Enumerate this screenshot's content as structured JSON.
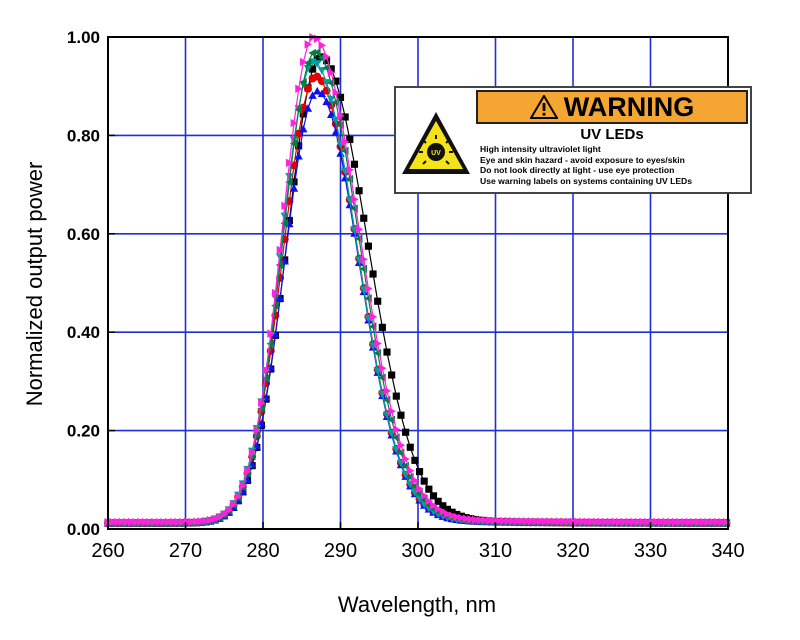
{
  "chart_data": {
    "type": "scatter",
    "xlabel": "Wavelength, nm",
    "ylabel": "Normalized output power",
    "xlim": [
      260,
      340
    ],
    "ylim": [
      0,
      1
    ],
    "xticks": [
      "260",
      "270",
      "280",
      "290",
      "300",
      "310",
      "320",
      "330",
      "340"
    ],
    "yticks": [
      "0.00",
      "0.20",
      "0.40",
      "0.60",
      "0.80",
      "1.00"
    ],
    "grid": true,
    "legend": "none",
    "series": [
      {
        "marker": "square",
        "color": "#000000",
        "peak_x": 287.4,
        "peak_y": 0.96,
        "width_left": 4.3,
        "width_right": 6.0,
        "baseline": 0.012
      },
      {
        "marker": "circle",
        "color": "#e00000",
        "peak_x": 286.8,
        "peak_y": 0.92,
        "width_left": 4.2,
        "width_right": 5.4,
        "baseline": 0.012
      },
      {
        "marker": "triangle-up",
        "color": "#1010ee",
        "peak_x": 287.0,
        "peak_y": 0.89,
        "width_left": 4.2,
        "width_right": 5.3,
        "baseline": 0.012
      },
      {
        "marker": "triangle-down",
        "color": "#00a0a0",
        "peak_x": 286.5,
        "peak_y": 0.95,
        "width_left": 4.1,
        "width_right": 5.5,
        "baseline": 0.012
      },
      {
        "marker": "triangle-left",
        "color": "#008040",
        "peak_x": 286.7,
        "peak_y": 0.97,
        "width_left": 4.1,
        "width_right": 5.6,
        "baseline": 0.012
      },
      {
        "marker": "triangle-right",
        "color": "#ff22dd",
        "peak_x": 286.5,
        "peak_y": 1.0,
        "width_left": 4.0,
        "width_right": 5.8,
        "baseline": 0.014
      }
    ]
  },
  "warning": {
    "header": "WARNING",
    "subtitle": "UV LEDs",
    "lines": [
      "High intensity ultraviolet light",
      "Eye and skin hazard - avoid exposure to eyes/skin",
      "Do not look directly at light - use eye protection",
      "Use warning labels on systems containing UV LEDs"
    ],
    "sign_text": "UV",
    "colors": {
      "header_bg": "#f5a531",
      "sign_bg": "#f5e31a"
    }
  }
}
